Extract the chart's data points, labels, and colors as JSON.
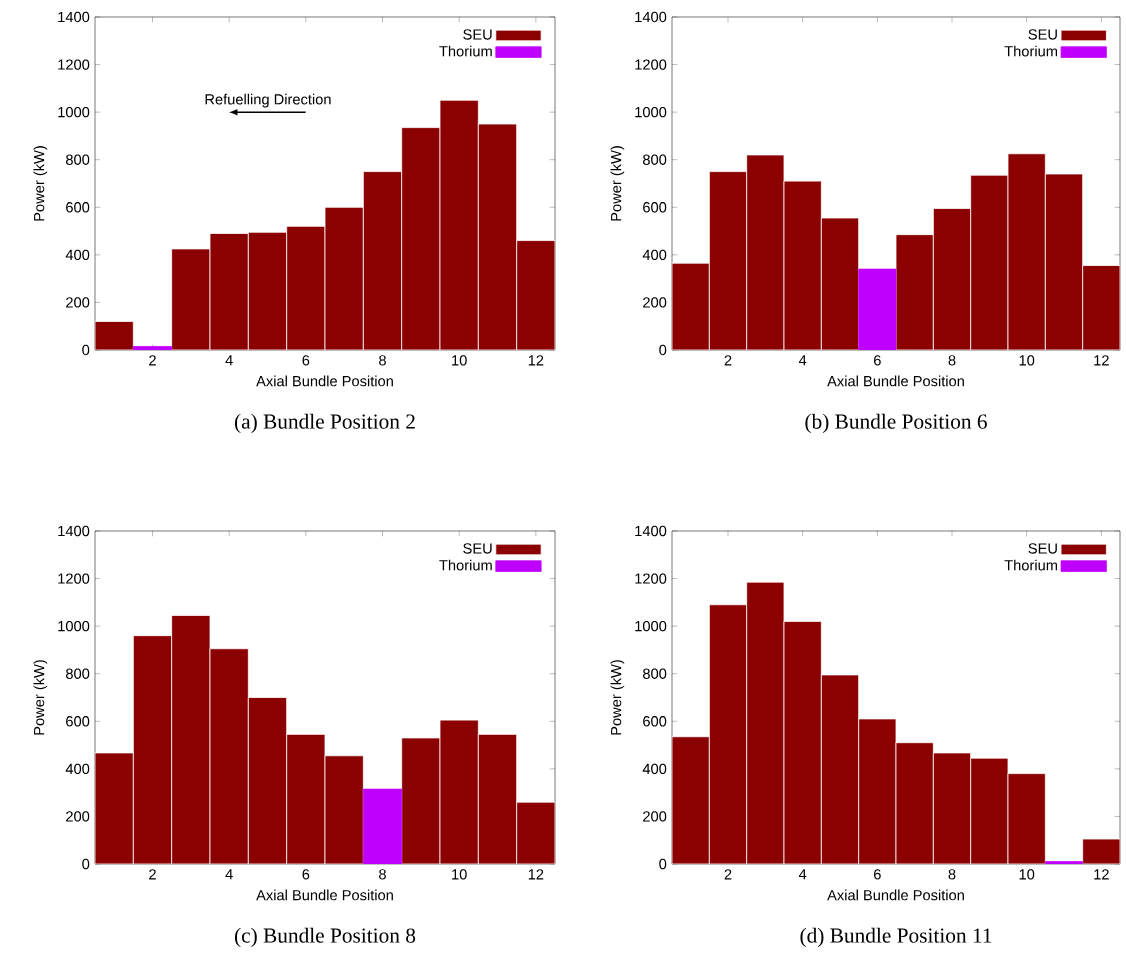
{
  "chart_data": [
    {
      "type": "bar",
      "title": "(a) Bundle Position 2",
      "xlabel": "Axial Bundle Position",
      "ylabel": "Power (kW)",
      "xlim": [
        0.5,
        12.5
      ],
      "xticks": [
        2,
        4,
        6,
        8,
        10,
        12
      ],
      "ylim": [
        0,
        1400
      ],
      "yticks": [
        0,
        200,
        400,
        600,
        800,
        1000,
        1200,
        1400
      ],
      "legend": "top right",
      "annotations": [
        "Refuelling Direction"
      ],
      "series": [
        {
          "name": "SEU",
          "color": "#8b0000",
          "x": [
            1,
            2,
            3,
            4,
            5,
            6,
            7,
            8,
            9,
            10,
            11,
            12
          ],
          "values": [
            120,
            null,
            425,
            490,
            495,
            520,
            600,
            750,
            935,
            1050,
            950,
            460
          ]
        },
        {
          "name": "Thorium",
          "color": "#c000ff",
          "x": [
            2
          ],
          "values": [
            15
          ]
        }
      ]
    },
    {
      "type": "bar",
      "title": "(b) Bundle Position 6",
      "xlabel": "Axial Bundle Position",
      "ylabel": "Power (kW)",
      "xlim": [
        0.5,
        12.5
      ],
      "xticks": [
        2,
        4,
        6,
        8,
        10,
        12
      ],
      "ylim": [
        0,
        1400
      ],
      "yticks": [
        0,
        200,
        400,
        600,
        800,
        1000,
        1200,
        1400
      ],
      "legend": "top right",
      "series": [
        {
          "name": "SEU",
          "color": "#8b0000",
          "x": [
            1,
            2,
            3,
            4,
            5,
            6,
            7,
            8,
            9,
            10,
            11,
            12
          ],
          "values": [
            365,
            750,
            820,
            710,
            555,
            null,
            485,
            595,
            735,
            825,
            740,
            355
          ]
        },
        {
          "name": "Thorium",
          "color": "#c000ff",
          "x": [
            6
          ],
          "values": [
            340
          ]
        }
      ]
    },
    {
      "type": "bar",
      "title": "(c) Bundle Position 8",
      "xlabel": "Axial Bundle Position",
      "ylabel": "Power (kW)",
      "xlim": [
        0.5,
        12.5
      ],
      "xticks": [
        2,
        4,
        6,
        8,
        10,
        12
      ],
      "ylim": [
        0,
        1400
      ],
      "yticks": [
        0,
        200,
        400,
        600,
        800,
        1000,
        1200,
        1400
      ],
      "legend": "top right",
      "series": [
        {
          "name": "SEU",
          "color": "#8b0000",
          "x": [
            1,
            2,
            3,
            4,
            5,
            6,
            7,
            8,
            9,
            10,
            11,
            12
          ],
          "values": [
            467,
            960,
            1045,
            905,
            700,
            545,
            455,
            null,
            530,
            605,
            545,
            260
          ]
        },
        {
          "name": "Thorium",
          "color": "#c000ff",
          "x": [
            8
          ],
          "values": [
            315
          ]
        }
      ]
    },
    {
      "type": "bar",
      "title": "(d) Bundle Position 11",
      "xlabel": "Axial Bundle Position",
      "ylabel": "Power (kW)",
      "xlim": [
        0.5,
        12.5
      ],
      "xticks": [
        2,
        4,
        6,
        8,
        10,
        12
      ],
      "ylim": [
        0,
        1400
      ],
      "yticks": [
        0,
        200,
        400,
        600,
        800,
        1000,
        1200,
        1400
      ],
      "legend": "top right",
      "series": [
        {
          "name": "SEU",
          "color": "#8b0000",
          "x": [
            1,
            2,
            3,
            4,
            5,
            6,
            7,
            8,
            9,
            10,
            11,
            12
          ],
          "values": [
            535,
            1090,
            1185,
            1020,
            795,
            610,
            510,
            467,
            445,
            380,
            null,
            105
          ]
        },
        {
          "name": "Thorium",
          "color": "#c000ff",
          "x": [
            11
          ],
          "values": [
            10
          ]
        }
      ]
    }
  ]
}
